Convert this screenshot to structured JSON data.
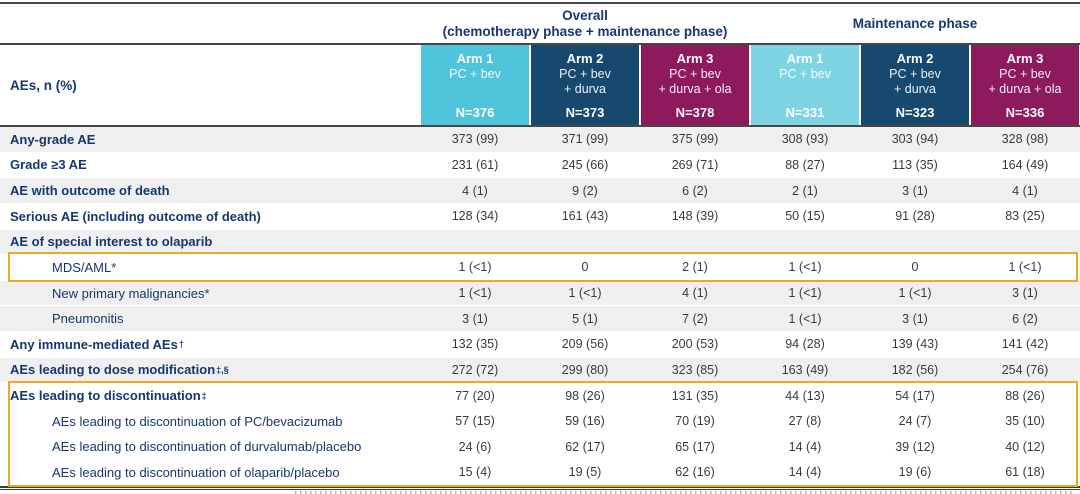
{
  "table": {
    "row_header_label": "AEs, n (%)",
    "group_headers": [
      {
        "title": "Overall",
        "subtitle": "(chemotherapy phase + maintenance phase)"
      },
      {
        "title": "Maintenance phase",
        "subtitle": ""
      }
    ],
    "highlight_color": "#F0A722",
    "stripe_color": "#EFEFEF",
    "arms": [
      {
        "name": "Arm 1",
        "regimen_lines": [
          "PC + bev"
        ],
        "n": "N=376",
        "color": "#4FC4DA",
        "phase": "Overall"
      },
      {
        "name": "Arm 2",
        "regimen_lines": [
          "PC + bev",
          "+ durva"
        ],
        "n": "N=373",
        "color": "#17496F",
        "phase": "Overall"
      },
      {
        "name": "Arm 3",
        "regimen_lines": [
          "PC + bev",
          "+ durva + ola"
        ],
        "n": "N=378",
        "color": "#8C1A5C",
        "phase": "Overall"
      },
      {
        "name": "Arm 1",
        "regimen_lines": [
          "PC + bev"
        ],
        "n": "N=331",
        "color": "#7FD4E3",
        "phase": "Maintenance phase"
      },
      {
        "name": "Arm 2",
        "regimen_lines": [
          "PC + bev",
          "+ durva"
        ],
        "n": "N=323",
        "color": "#17496F",
        "phase": "Maintenance phase"
      },
      {
        "name": "Arm 3",
        "regimen_lines": [
          "PC + bev",
          "+ durva + ola"
        ],
        "n": "N=336",
        "color": "#8C1A5C",
        "phase": "Maintenance phase"
      }
    ],
    "rows": [
      {
        "label": "Any-grade AE",
        "sup": "",
        "bold": true,
        "indent": false,
        "shaded": true,
        "values": [
          "373 (99)",
          "371 (99)",
          "375 (99)",
          "308 (93)",
          "303 (94)",
          "328 (98)"
        ]
      },
      {
        "label": "Grade ≥3 AE",
        "sup": "",
        "bold": true,
        "indent": false,
        "shaded": false,
        "values": [
          "231 (61)",
          "245 (66)",
          "269 (71)",
          "88 (27)",
          "113 (35)",
          "164 (49)"
        ]
      },
      {
        "label": "AE with outcome of death",
        "sup": "",
        "bold": true,
        "indent": false,
        "shaded": true,
        "values": [
          "4 (1)",
          "9 (2)",
          "6 (2)",
          "2 (1)",
          "3 (1)",
          "4 (1)"
        ]
      },
      {
        "label": "Serious AE (including outcome of death)",
        "sup": "",
        "bold": true,
        "indent": false,
        "shaded": false,
        "values": [
          "128 (34)",
          "161 (43)",
          "148 (39)",
          "50 (15)",
          "91 (28)",
          "83 (25)"
        ]
      },
      {
        "label": "AE of special interest to olaparib",
        "sup": "",
        "bold": true,
        "indent": false,
        "shaded": true,
        "values": [
          "",
          "",
          "",
          "",
          "",
          ""
        ]
      },
      {
        "label": "MDS/AML*",
        "sup": "",
        "bold": false,
        "indent": true,
        "shaded": false,
        "highlighted": true,
        "values": [
          "1 (<1)",
          "0",
          "2 (1)",
          "1 (<1)",
          "0",
          "1 (<1)"
        ]
      },
      {
        "label": "New primary malignancies*",
        "sup": "",
        "bold": false,
        "indent": true,
        "shaded": true,
        "values": [
          "1 (<1)",
          "1 (<1)",
          "4 (1)",
          "1 (<1)",
          "1 (<1)",
          "3 (1)"
        ]
      },
      {
        "label": "Pneumonitis",
        "sup": "",
        "bold": false,
        "indent": true,
        "shaded": true,
        "values": [
          "3 (1)",
          "5 (1)",
          "7 (2)",
          "1 (<1)",
          "3 (1)",
          "6 (2)"
        ]
      },
      {
        "label": "Any immune-mediated AEs",
        "sup": "†",
        "bold": true,
        "indent": false,
        "shaded": false,
        "values": [
          "132 (35)",
          "209 (56)",
          "200 (53)",
          "94 (28)",
          "139 (43)",
          "141 (42)"
        ]
      },
      {
        "label": "AEs leading to dose modification",
        "sup": "‡,§",
        "bold": true,
        "indent": false,
        "shaded": true,
        "values": [
          "272 (72)",
          "299 (80)",
          "323 (85)",
          "163 (49)",
          "182 (56)",
          "254 (76)"
        ]
      },
      {
        "label": "AEs leading to discontinuation",
        "sup": "‡",
        "bold": true,
        "indent": false,
        "shaded": false,
        "highlighted": true,
        "values": [
          "77 (20)",
          "98 (26)",
          "131 (35)",
          "44 (13)",
          "54 (17)",
          "88 (26)"
        ]
      },
      {
        "label": "AEs leading to discontinuation of PC/bevacizumab",
        "sup": "",
        "bold": false,
        "indent": true,
        "shaded": false,
        "highlighted": true,
        "values": [
          "57 (15)",
          "59 (16)",
          "70 (19)",
          "27 (8)",
          "24 (7)",
          "35 (10)"
        ]
      },
      {
        "label": "AEs leading to discontinuation of durvalumab/placebo",
        "sup": "",
        "bold": false,
        "indent": true,
        "shaded": false,
        "highlighted": true,
        "values": [
          "24 (6)",
          "62 (17)",
          "65 (17)",
          "14 (4)",
          "39 (12)",
          "40 (12)"
        ]
      },
      {
        "label": "AEs leading to discontinuation of olaparib/placebo",
        "sup": "",
        "bold": false,
        "indent": true,
        "shaded": false,
        "highlighted": true,
        "values": [
          "15 (4)",
          "19 (5)",
          "62 (16)",
          "14 (4)",
          "19 (6)",
          "61 (18)"
        ]
      }
    ]
  }
}
